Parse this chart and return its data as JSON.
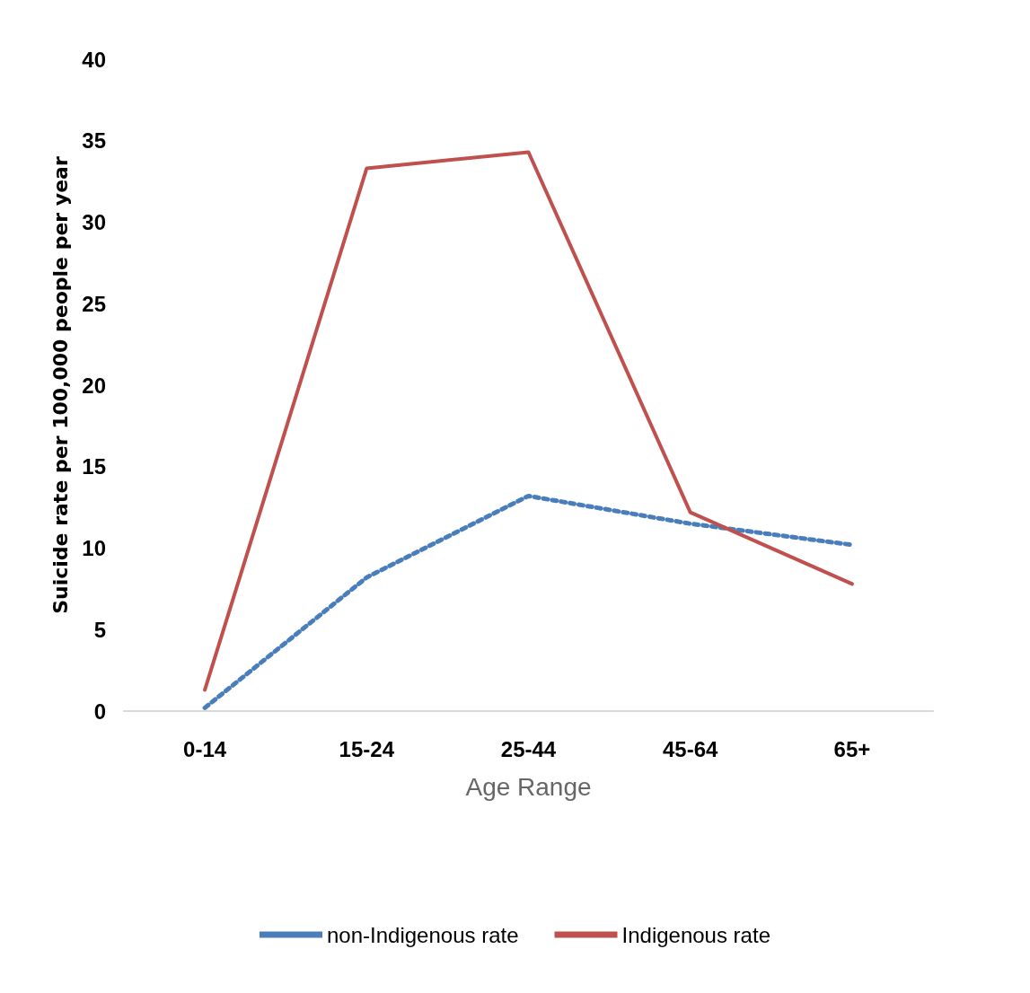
{
  "chart_data": {
    "type": "line",
    "xlabel": "Age Range",
    "ylabel": "Suicide rate per 100,000 people per year",
    "categories": [
      "0-14",
      "15-24",
      "25-44",
      "45-64",
      "65+"
    ],
    "series": [
      {
        "name": "non-Indigenous rate",
        "color": "#4a7ebb",
        "line_style": "dotted",
        "values": [
          0.2,
          8.2,
          13.2,
          11.5,
          10.2
        ]
      },
      {
        "name": "Indigenous rate",
        "color": "#c0504d",
        "line_style": "solid",
        "values": [
          1.3,
          33.3,
          34.3,
          12.2,
          7.8
        ]
      }
    ],
    "ylim": [
      0,
      40
    ],
    "yticks": [
      0,
      5,
      10,
      15,
      20,
      25,
      30,
      35,
      40
    ],
    "grid": false,
    "legend": "bottom",
    "marker": "none"
  }
}
